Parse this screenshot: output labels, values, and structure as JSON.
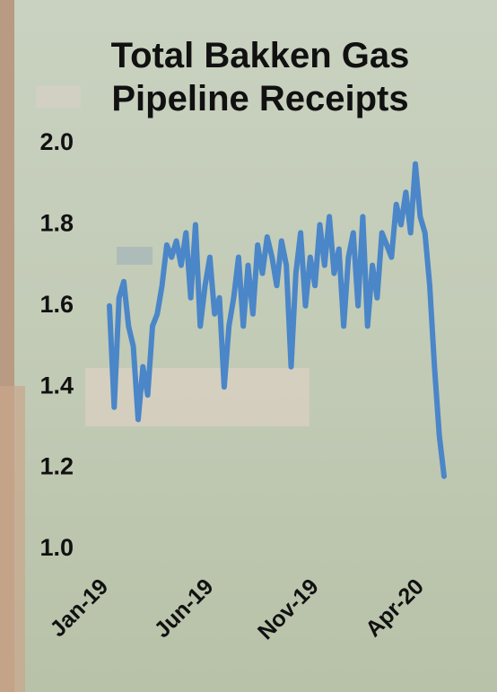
{
  "chart_data": {
    "type": "line",
    "title": "Total Bakken Gas Pipeline Receipts",
    "categories": [
      "Jan-19",
      null,
      null,
      null,
      null,
      null,
      null,
      null,
      null,
      null,
      null,
      null,
      null,
      null,
      null,
      null,
      null,
      null,
      null,
      null,
      null,
      null,
      "Jun-19",
      null,
      null,
      null,
      null,
      null,
      null,
      null,
      null,
      null,
      null,
      null,
      null,
      null,
      null,
      null,
      null,
      null,
      null,
      null,
      null,
      null,
      "Nov-19",
      null,
      null,
      null,
      null,
      null,
      null,
      null,
      null,
      null,
      null,
      null,
      null,
      null,
      null,
      null,
      null,
      null,
      null,
      null,
      null,
      null,
      "Apr-20",
      null,
      null,
      null,
      null
    ],
    "values": [
      1.6,
      1.35,
      1.62,
      1.66,
      1.55,
      1.5,
      1.32,
      1.45,
      1.38,
      1.55,
      1.58,
      1.65,
      1.75,
      1.72,
      1.76,
      1.7,
      1.78,
      1.62,
      1.8,
      1.55,
      1.65,
      1.72,
      1.58,
      1.62,
      1.4,
      1.55,
      1.62,
      1.72,
      1.55,
      1.7,
      1.58,
      1.75,
      1.68,
      1.77,
      1.72,
      1.65,
      1.76,
      1.7,
      1.45,
      1.68,
      1.78,
      1.6,
      1.72,
      1.65,
      1.8,
      1.7,
      1.82,
      1.68,
      1.74,
      1.55,
      1.72,
      1.78,
      1.6,
      1.82,
      1.55,
      1.7,
      1.62,
      1.78,
      1.75,
      1.72,
      1.85,
      1.8,
      1.88,
      1.78,
      1.95,
      1.82,
      1.78,
      1.65,
      1.45,
      1.28,
      1.18
    ],
    "color": "#4a86c8",
    "ylim": [
      1,
      2
    ],
    "yticks": [
      {
        "value": 1,
        "label": "1.0"
      },
      1.2,
      1.4,
      1.6,
      1.8,
      {
        "value": 2,
        "label": "2.0"
      }
    ]
  }
}
